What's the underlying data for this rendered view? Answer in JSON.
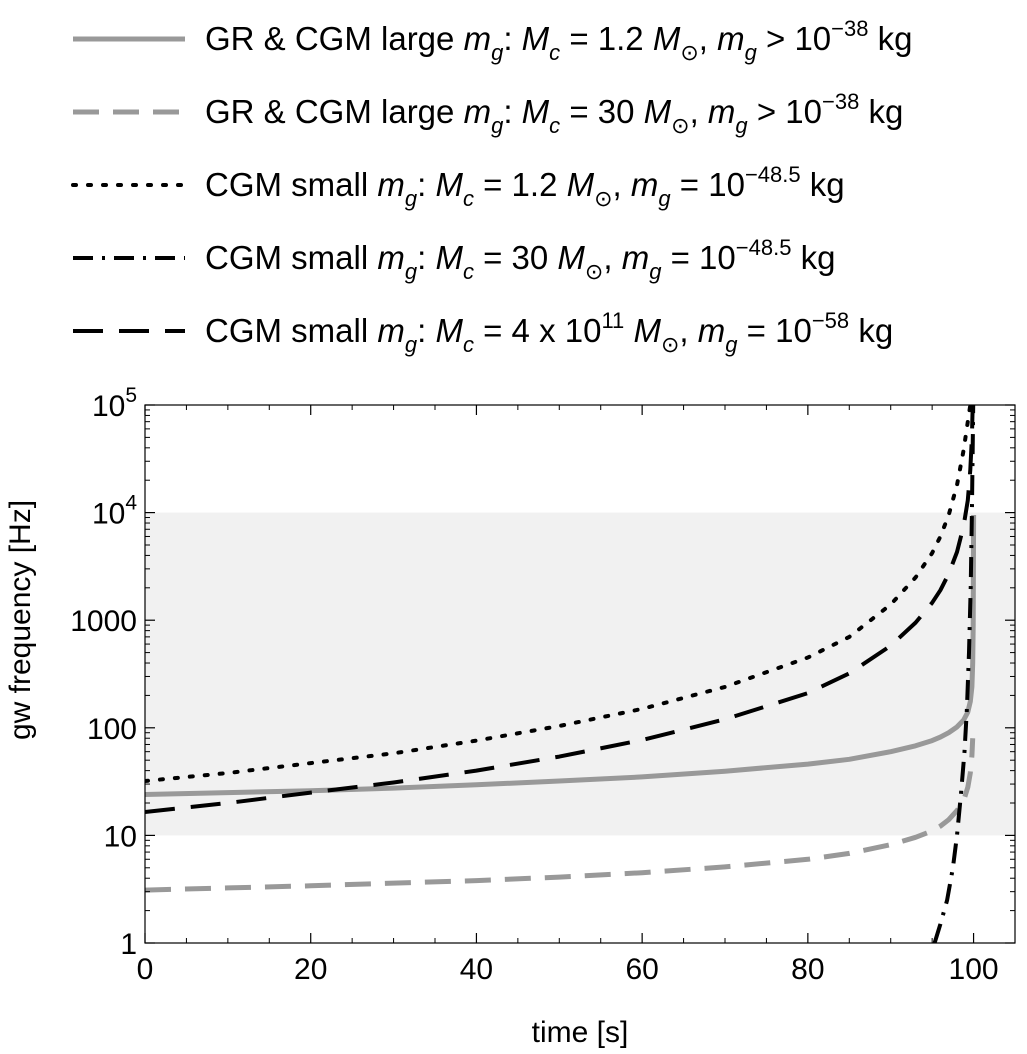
{
  "chart_data": {
    "type": "line",
    "xlabel": "time [s]",
    "ylabel": "gw frequency [Hz]",
    "xlim": [
      0,
      105
    ],
    "ylim": [
      1,
      100000
    ],
    "yscale": "log",
    "x_ticks": [
      {
        "value": 0,
        "label": "0"
      },
      {
        "value": 20,
        "label": "20"
      },
      {
        "value": 40,
        "label": "40"
      },
      {
        "value": 60,
        "label": "60"
      },
      {
        "value": 80,
        "label": "80"
      },
      {
        "value": 100,
        "label": "100"
      }
    ],
    "y_ticks": [
      {
        "value": 1,
        "label": "1",
        "sup": ""
      },
      {
        "value": 10,
        "label": "10",
        "sup": ""
      },
      {
        "value": 100,
        "label": "100",
        "sup": ""
      },
      {
        "value": 1000,
        "label": "1000",
        "sup": ""
      },
      {
        "value": 10000,
        "label": "10",
        "sup": "4"
      },
      {
        "value": 100000,
        "label": "10",
        "sup": "5"
      }
    ],
    "shaded_band": {
      "y_min": 10,
      "y_max": 10000,
      "color": "#f1f1f1"
    },
    "legend_position": "top",
    "series": [
      {
        "legend": [
          {
            "t": "GR & CGM large "
          },
          {
            "t": "m",
            "i": true
          },
          {
            "t": "g",
            "i": true,
            "sub": true
          },
          {
            "t": ": "
          },
          {
            "t": "M",
            "i": true
          },
          {
            "t": "c",
            "i": true,
            "sub": true
          },
          {
            "t": " = 1.2 "
          },
          {
            "t": "M",
            "i": true
          },
          {
            "t": "⊙",
            "sub": true
          },
          {
            "t": ", "
          },
          {
            "t": "m",
            "i": true
          },
          {
            "t": "g",
            "i": true,
            "sub": true
          },
          {
            "t": " > 10"
          },
          {
            "t": "−38",
            "sup": true
          },
          {
            "t": " kg"
          }
        ],
        "color": "#999999",
        "dash": "solid",
        "width": 5,
        "points": [
          [
            0,
            24
          ],
          [
            10,
            25
          ],
          [
            20,
            26
          ],
          [
            30,
            27.5
          ],
          [
            40,
            29.5
          ],
          [
            50,
            32
          ],
          [
            60,
            35
          ],
          [
            70,
            39.5
          ],
          [
            80,
            46
          ],
          [
            85,
            51
          ],
          [
            90,
            60
          ],
          [
            93,
            68
          ],
          [
            95,
            76
          ],
          [
            96,
            82
          ],
          [
            97,
            90
          ],
          [
            98,
            102
          ],
          [
            98.8,
            118
          ],
          [
            99.3,
            140
          ],
          [
            99.6,
            175
          ],
          [
            99.8,
            240
          ],
          [
            99.9,
            400
          ],
          [
            99.95,
            900
          ],
          [
            99.98,
            3000
          ],
          [
            100,
            9500
          ]
        ]
      },
      {
        "legend": [
          {
            "t": "GR & CGM large "
          },
          {
            "t": "m",
            "i": true
          },
          {
            "t": "g",
            "i": true,
            "sub": true
          },
          {
            "t": ": "
          },
          {
            "t": "M",
            "i": true
          },
          {
            "t": "c",
            "i": true,
            "sub": true
          },
          {
            "t": " = 30 "
          },
          {
            "t": "M",
            "i": true
          },
          {
            "t": "⊙",
            "sub": true
          },
          {
            "t": ", "
          },
          {
            "t": "m",
            "i": true
          },
          {
            "t": "g",
            "i": true,
            "sub": true
          },
          {
            "t": " > 10"
          },
          {
            "t": "−38",
            "sup": true
          },
          {
            "t": " kg"
          }
        ],
        "color": "#999999",
        "dash": "long",
        "width": 5,
        "points": [
          [
            0,
            3.1
          ],
          [
            10,
            3.25
          ],
          [
            20,
            3.4
          ],
          [
            30,
            3.6
          ],
          [
            40,
            3.8
          ],
          [
            50,
            4.1
          ],
          [
            60,
            4.5
          ],
          [
            70,
            5.1
          ],
          [
            80,
            6.0
          ],
          [
            85,
            6.8
          ],
          [
            90,
            8.2
          ],
          [
            93,
            9.6
          ],
          [
            95,
            11
          ],
          [
            96,
            12.2
          ],
          [
            97,
            14
          ],
          [
            98,
            17
          ],
          [
            98.8,
            21
          ],
          [
            99.3,
            28
          ],
          [
            99.6,
            38
          ],
          [
            99.8,
            55
          ],
          [
            99.9,
            80
          ]
        ]
      },
      {
        "legend": [
          {
            "t": "CGM small "
          },
          {
            "t": "m",
            "i": true
          },
          {
            "t": "g",
            "i": true,
            "sub": true
          },
          {
            "t": ": "
          },
          {
            "t": "M",
            "i": true
          },
          {
            "t": "c",
            "i": true,
            "sub": true
          },
          {
            "t": " = 1.2 "
          },
          {
            "t": "M",
            "i": true
          },
          {
            "t": "⊙",
            "sub": true
          },
          {
            "t": ", "
          },
          {
            "t": "m",
            "i": true
          },
          {
            "t": "g",
            "i": true,
            "sub": true
          },
          {
            "t": " = 10"
          },
          {
            "t": "−48.5",
            "sup": true
          },
          {
            "t": " kg"
          }
        ],
        "color": "#000000",
        "dash": "dot",
        "width": 4,
        "points": [
          [
            0,
            32
          ],
          [
            10,
            38
          ],
          [
            20,
            47
          ],
          [
            30,
            58
          ],
          [
            40,
            76
          ],
          [
            50,
            104
          ],
          [
            60,
            150
          ],
          [
            70,
            240
          ],
          [
            80,
            450
          ],
          [
            85,
            700
          ],
          [
            90,
            1400
          ],
          [
            93,
            2500
          ],
          [
            95,
            4200
          ],
          [
            96,
            6000
          ],
          [
            97,
            9500
          ],
          [
            98,
            18000
          ],
          [
            98.8,
            38000
          ],
          [
            99.3,
            70000
          ],
          [
            99.6,
            100000
          ]
        ]
      },
      {
        "legend": [
          {
            "t": "CGM small "
          },
          {
            "t": "m",
            "i": true
          },
          {
            "t": "g",
            "i": true,
            "sub": true
          },
          {
            "t": ": "
          },
          {
            "t": "M",
            "i": true
          },
          {
            "t": "c",
            "i": true,
            "sub": true
          },
          {
            "t": " = 30 "
          },
          {
            "t": "M",
            "i": true
          },
          {
            "t": "⊙",
            "sub": true
          },
          {
            "t": ", "
          },
          {
            "t": "m",
            "i": true
          },
          {
            "t": "g",
            "i": true,
            "sub": true
          },
          {
            "t": " = 10"
          },
          {
            "t": "−48.5",
            "sup": true
          },
          {
            "t": " kg"
          }
        ],
        "color": "#000000",
        "dash": "dashdot",
        "width": 4,
        "points": [
          [
            95.3,
            1
          ],
          [
            96,
            1.5
          ],
          [
            96.8,
            2.5
          ],
          [
            97.5,
            5
          ],
          [
            98,
            10
          ],
          [
            98.5,
            25
          ],
          [
            98.9,
            60
          ],
          [
            99.2,
            150
          ],
          [
            99.45,
            500
          ],
          [
            99.65,
            2000
          ],
          [
            99.8,
            10000
          ],
          [
            99.9,
            40000
          ],
          [
            99.95,
            100000
          ]
        ]
      },
      {
        "legend": [
          {
            "t": "CGM small "
          },
          {
            "t": "m",
            "i": true
          },
          {
            "t": "g",
            "i": true,
            "sub": true
          },
          {
            "t": ": "
          },
          {
            "t": "M",
            "i": true
          },
          {
            "t": "c",
            "i": true,
            "sub": true
          },
          {
            "t": " = 4 x 10"
          },
          {
            "t": "11",
            "sup": true
          },
          {
            "t": " "
          },
          {
            "t": "M",
            "i": true
          },
          {
            "t": "⊙",
            "sub": true
          },
          {
            "t": ", "
          },
          {
            "t": "m",
            "i": true
          },
          {
            "t": "g",
            "i": true,
            "sub": true
          },
          {
            "t": " = 10"
          },
          {
            "t": "−58",
            "sup": true
          },
          {
            "t": " kg"
          }
        ],
        "color": "#000000",
        "dash": "dash",
        "width": 4,
        "points": [
          [
            0,
            16.5
          ],
          [
            10,
            20
          ],
          [
            20,
            25
          ],
          [
            30,
            31
          ],
          [
            40,
            40
          ],
          [
            50,
            54
          ],
          [
            60,
            77
          ],
          [
            70,
            120
          ],
          [
            80,
            210
          ],
          [
            85,
            320
          ],
          [
            90,
            580
          ],
          [
            93,
            950
          ],
          [
            95,
            1450
          ],
          [
            96,
            1900
          ],
          [
            97,
            2700
          ],
          [
            98,
            4300
          ],
          [
            98.8,
            7500
          ],
          [
            99.3,
            13000
          ],
          [
            99.6,
            25000
          ],
          [
            99.8,
            50000
          ],
          [
            99.9,
            100000
          ]
        ]
      }
    ]
  }
}
